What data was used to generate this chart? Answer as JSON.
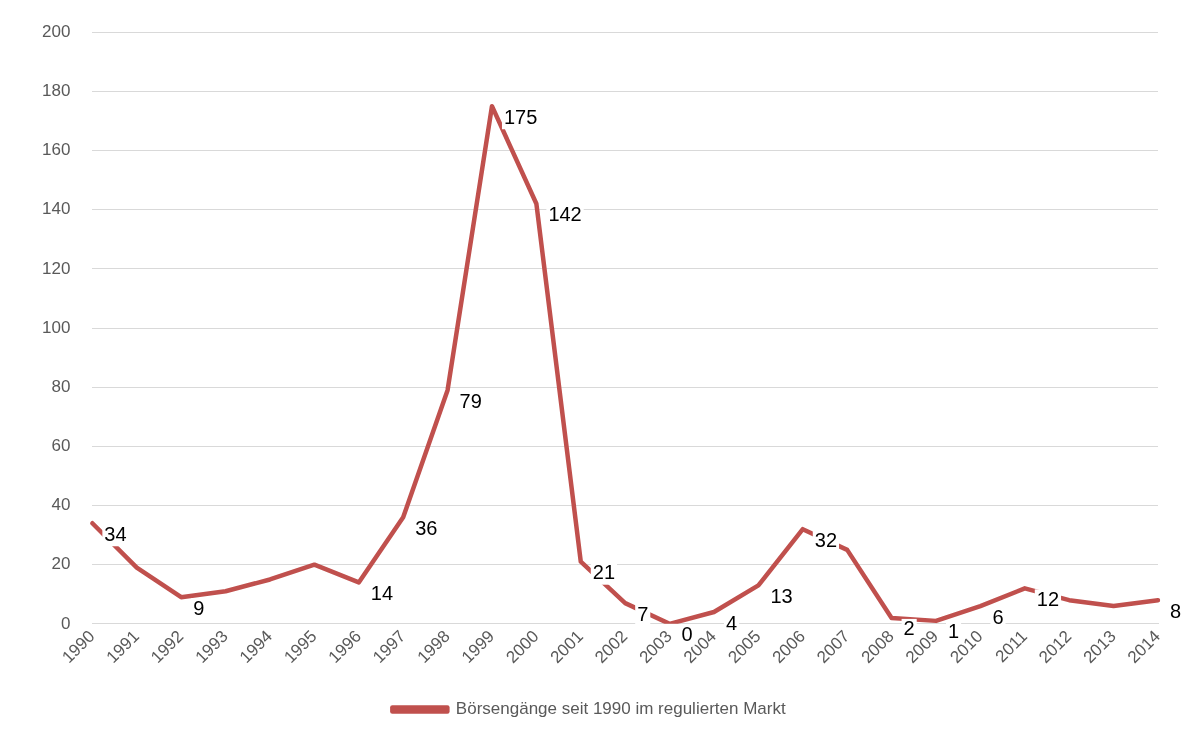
{
  "chart_data": {
    "type": "line",
    "categories": [
      "1990",
      "1991",
      "1992",
      "1993",
      "1994",
      "1995",
      "1996",
      "1997",
      "1998",
      "1999",
      "2000",
      "2001",
      "2002",
      "2003",
      "2004",
      "2005",
      "2006",
      "2007",
      "2008",
      "2009",
      "2010",
      "2011",
      "2012",
      "2013",
      "2014"
    ],
    "series": [
      {
        "name": "Börsengänge seit 1990 im regulierten Markt",
        "color": "#c0504d",
        "values": [
          34,
          19,
          9,
          11,
          15,
          20,
          14,
          36,
          79,
          175,
          142,
          21,
          7,
          0,
          4,
          13,
          32,
          25,
          2,
          1,
          6,
          12,
          8,
          6,
          8
        ],
        "value_labels": [
          "34",
          null,
          "9",
          null,
          null,
          null,
          "14",
          "36",
          "79",
          "175",
          "142",
          "21",
          "7",
          "0",
          "4",
          "13",
          "32",
          null,
          "2",
          "1",
          "6",
          "12",
          null,
          null,
          "8"
        ]
      }
    ],
    "ylim": [
      0,
      200
    ],
    "yticks": [
      0,
      20,
      40,
      60,
      80,
      100,
      120,
      140,
      160,
      180,
      200
    ],
    "grid": "y",
    "legend": "bottom",
    "marker": "none",
    "line_style": "solid"
  }
}
